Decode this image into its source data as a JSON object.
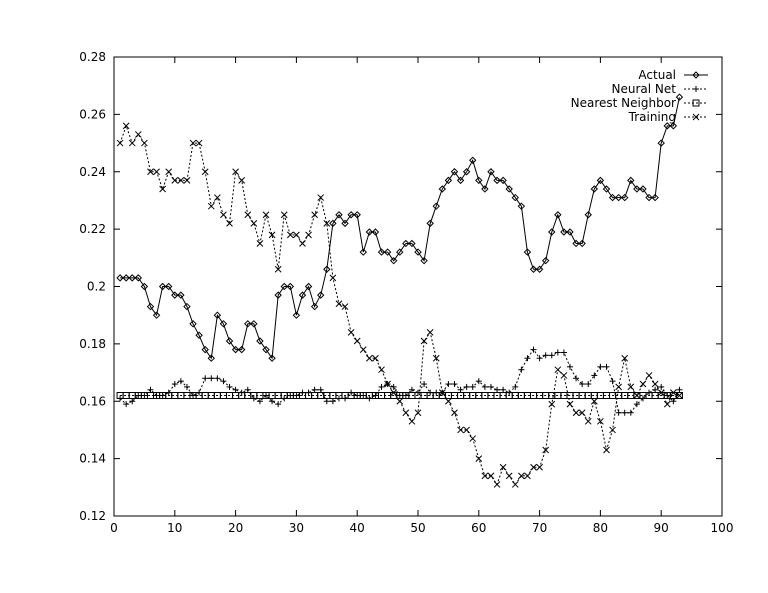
{
  "chart_data": {
    "type": "line",
    "title": "",
    "xlabel": "",
    "ylabel": "",
    "xlim": [
      0,
      100
    ],
    "ylim": [
      0.12,
      0.28
    ],
    "xticks": [
      0,
      10,
      20,
      30,
      40,
      50,
      60,
      70,
      80,
      90,
      100
    ],
    "xtick_labels": [
      "0",
      "10",
      "20",
      "30",
      "40",
      "50",
      "60",
      "70",
      "80",
      "90",
      "100"
    ],
    "yticks": [
      0.12,
      0.14,
      0.16,
      0.18,
      0.2,
      0.22,
      0.24,
      0.26,
      0.28
    ],
    "ytick_labels": [
      "0.12",
      "0.14",
      "0.16",
      "0.18",
      "0.2",
      "0.22",
      "0.24",
      "0.26",
      "0.28"
    ],
    "grid": false,
    "legend_position": "top-right",
    "x": [
      1,
      2,
      3,
      4,
      5,
      6,
      7,
      8,
      9,
      10,
      11,
      12,
      13,
      14,
      15,
      16,
      17,
      18,
      19,
      20,
      21,
      22,
      23,
      24,
      25,
      26,
      27,
      28,
      29,
      30,
      31,
      32,
      33,
      34,
      35,
      36,
      37,
      38,
      39,
      40,
      41,
      42,
      43,
      44,
      45,
      46,
      47,
      48,
      49,
      50,
      51,
      52,
      53,
      54,
      55,
      56,
      57,
      58,
      59,
      60,
      61,
      62,
      63,
      64,
      65,
      66,
      67,
      68,
      69,
      70,
      71,
      72,
      73,
      74,
      75,
      76,
      77,
      78,
      79,
      80,
      81,
      82,
      83,
      84,
      85,
      86,
      87,
      88,
      89,
      90,
      91,
      92,
      93
    ],
    "series": [
      {
        "name": "Actual",
        "marker": "diamond",
        "style": "solid",
        "values": [
          0.203,
          0.203,
          0.203,
          0.203,
          0.2,
          0.193,
          0.19,
          0.2,
          0.2,
          0.197,
          0.197,
          0.193,
          0.187,
          0.183,
          0.178,
          0.175,
          0.19,
          0.187,
          0.181,
          0.178,
          0.178,
          0.187,
          0.187,
          0.181,
          0.178,
          0.175,
          0.197,
          0.2,
          0.2,
          0.19,
          0.197,
          0.2,
          0.193,
          0.197,
          0.206,
          0.222,
          0.225,
          0.222,
          0.225,
          0.225,
          0.212,
          0.219,
          0.219,
          0.212,
          0.212,
          0.209,
          0.212,
          0.215,
          0.215,
          0.212,
          0.209,
          0.222,
          0.228,
          0.234,
          0.237,
          0.24,
          0.237,
          0.24,
          0.244,
          0.237,
          0.234,
          0.24,
          0.237,
          0.237,
          0.234,
          0.231,
          0.228,
          0.212,
          0.206,
          0.206,
          0.209,
          0.219,
          0.225,
          0.219,
          0.219,
          0.215,
          0.215,
          0.225,
          0.234,
          0.237,
          0.234,
          0.231,
          0.231,
          0.231,
          0.237,
          0.234,
          0.234,
          0.231,
          0.231,
          0.25,
          0.256,
          0.256,
          0.266
        ]
      },
      {
        "name": "Neural Net",
        "marker": "plus",
        "style": "dashed",
        "values": [
          0.161,
          0.159,
          0.16,
          0.162,
          0.162,
          0.164,
          0.162,
          0.162,
          0.163,
          0.166,
          0.167,
          0.165,
          0.162,
          0.163,
          0.168,
          0.168,
          0.168,
          0.167,
          0.165,
          0.164,
          0.163,
          0.164,
          0.161,
          0.16,
          0.162,
          0.16,
          0.159,
          0.161,
          0.162,
          0.162,
          0.163,
          0.163,
          0.164,
          0.164,
          0.16,
          0.16,
          0.161,
          0.161,
          0.163,
          0.162,
          0.162,
          0.161,
          0.162,
          0.165,
          0.166,
          0.165,
          0.162,
          0.162,
          0.164,
          0.163,
          0.166,
          0.163,
          0.163,
          0.163,
          0.166,
          0.166,
          0.164,
          0.165,
          0.165,
          0.167,
          0.165,
          0.165,
          0.164,
          0.164,
          0.163,
          0.165,
          0.171,
          0.175,
          0.178,
          0.175,
          0.176,
          0.176,
          0.177,
          0.177,
          0.172,
          0.168,
          0.166,
          0.166,
          0.169,
          0.172,
          0.172,
          0.167,
          0.156,
          0.156,
          0.156,
          0.159,
          0.161,
          0.163,
          0.164,
          0.165,
          0.162,
          0.16,
          0.164
        ]
      },
      {
        "name": "Nearest Neighbor",
        "marker": "square",
        "style": "dashed",
        "values": [
          0.162,
          0.162,
          0.162,
          0.162,
          0.162,
          0.162,
          0.162,
          0.162,
          0.162,
          0.162,
          0.162,
          0.162,
          0.162,
          0.162,
          0.162,
          0.162,
          0.162,
          0.162,
          0.162,
          0.162,
          0.162,
          0.162,
          0.162,
          0.162,
          0.162,
          0.162,
          0.162,
          0.162,
          0.162,
          0.162,
          0.162,
          0.162,
          0.162,
          0.162,
          0.162,
          0.162,
          0.162,
          0.162,
          0.162,
          0.162,
          0.162,
          0.162,
          0.162,
          0.162,
          0.162,
          0.162,
          0.162,
          0.162,
          0.162,
          0.162,
          0.162,
          0.162,
          0.162,
          0.162,
          0.162,
          0.162,
          0.162,
          0.162,
          0.162,
          0.162,
          0.162,
          0.162,
          0.162,
          0.162,
          0.162,
          0.162,
          0.162,
          0.162,
          0.162,
          0.162,
          0.162,
          0.162,
          0.162,
          0.162,
          0.162,
          0.162,
          0.162,
          0.162,
          0.162,
          0.162,
          0.162,
          0.162,
          0.162,
          0.162,
          0.162,
          0.162,
          0.162,
          0.162,
          0.162,
          0.162,
          0.162,
          0.162,
          0.162
        ]
      },
      {
        "name": "Training",
        "marker": "cross",
        "style": "dashed",
        "values": [
          0.25,
          0.256,
          0.25,
          0.253,
          0.25,
          0.24,
          0.24,
          0.234,
          0.24,
          0.237,
          0.237,
          0.237,
          0.25,
          0.25,
          0.24,
          0.228,
          0.231,
          0.225,
          0.222,
          0.24,
          0.237,
          0.225,
          0.222,
          0.215,
          0.225,
          0.218,
          0.206,
          0.225,
          0.218,
          0.218,
          0.215,
          0.218,
          0.225,
          0.231,
          0.222,
          0.203,
          0.194,
          0.193,
          0.184,
          0.181,
          0.178,
          0.175,
          0.175,
          0.171,
          0.166,
          0.163,
          0.16,
          0.156,
          0.153,
          0.156,
          0.181,
          0.184,
          0.175,
          0.163,
          0.16,
          0.156,
          0.15,
          0.15,
          0.147,
          0.14,
          0.134,
          0.134,
          0.131,
          0.137,
          0.134,
          0.131,
          0.134,
          0.134,
          0.137,
          0.137,
          0.143,
          0.159,
          0.171,
          0.169,
          0.159,
          0.156,
          0.156,
          0.153,
          0.16,
          0.153,
          0.143,
          0.15,
          0.165,
          0.175,
          0.165,
          0.162,
          0.166,
          0.169,
          0.166,
          0.163,
          0.159,
          0.163,
          0.162
        ]
      }
    ]
  }
}
